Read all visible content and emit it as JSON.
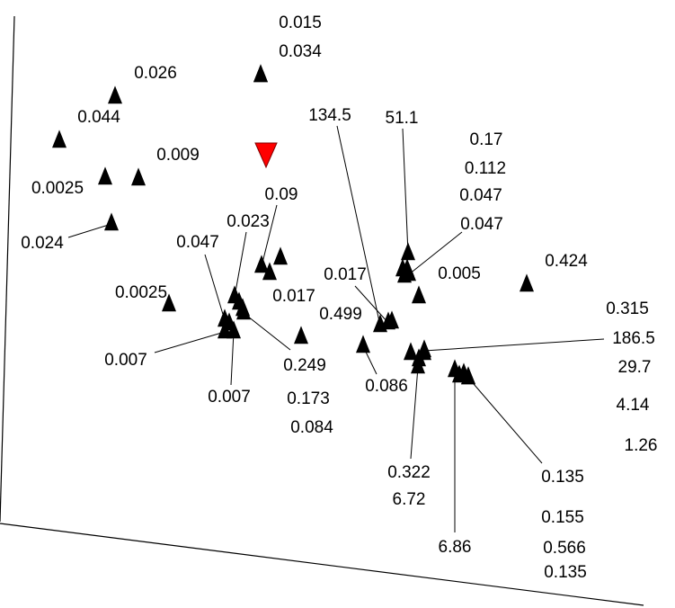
{
  "chart_data": {
    "type": "scatter",
    "title": "",
    "xlabel": "",
    "ylabel": "",
    "grid": false,
    "legend": "none",
    "colors": {
      "sample": "#000000",
      "reference": "#ff0000",
      "line": "#000000"
    },
    "series": [
      {
        "marker": "triangle-up",
        "points": [
          {
            "label": "0.015"
          },
          {
            "label": "0.034"
          },
          {
            "label": "0.026"
          },
          {
            "label": "0.044"
          },
          {
            "label": "0.009"
          },
          {
            "label": "0.0025"
          },
          {
            "label": "0.024"
          },
          {
            "label": "0.09"
          },
          {
            "label": "0.023"
          },
          {
            "label": "0.047"
          },
          {
            "label": "0.017"
          },
          {
            "label": "0.0025"
          },
          {
            "label": "0.007"
          },
          {
            "label": "0.007"
          },
          {
            "label": "0.249"
          },
          {
            "label": "0.173"
          },
          {
            "label": "0.084"
          },
          {
            "label": "134.5"
          },
          {
            "label": "51.1"
          },
          {
            "label": "0.17"
          },
          {
            "label": "0.112"
          },
          {
            "label": "0.047"
          },
          {
            "label": "0.047"
          },
          {
            "label": "0.017"
          },
          {
            "label": "0.005"
          },
          {
            "label": "0.424"
          },
          {
            "label": "0.499"
          },
          {
            "label": "0.086"
          },
          {
            "label": "0.315"
          },
          {
            "label": "186.5"
          },
          {
            "label": "29.7"
          },
          {
            "label": "4.14"
          },
          {
            "label": "1.26"
          },
          {
            "label": "0.322"
          },
          {
            "label": "6.72"
          },
          {
            "label": "0.135"
          },
          {
            "label": "0.155"
          },
          {
            "label": "6.86"
          },
          {
            "label": "0.566"
          },
          {
            "label": "0.135"
          }
        ]
      },
      {
        "marker": "triangle-down",
        "points": [
          {
            "label": ""
          }
        ]
      }
    ]
  }
}
